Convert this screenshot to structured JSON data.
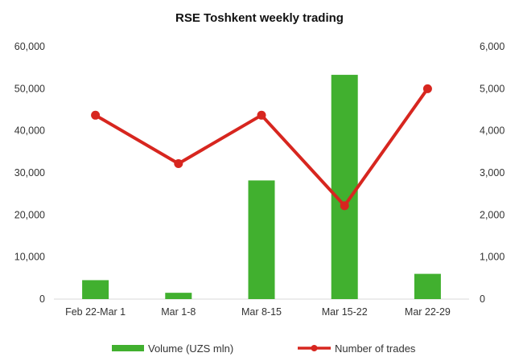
{
  "chart_data": {
    "type": "bar",
    "title": "RSE Toshkent weekly trading",
    "categories": [
      "Feb 22-Mar 1",
      "Mar 1-8",
      "Mar 8-15",
      "Mar 15-22",
      "Mar 22-29"
    ],
    "series": [
      {
        "name": "Volume (UZS mln)",
        "type": "bar",
        "axis": "left",
        "color": "#41b02f",
        "values": [
          4500,
          1500,
          28200,
          53300,
          6000
        ]
      },
      {
        "name": "Number of trades",
        "type": "line",
        "axis": "right",
        "color": "#d7261f",
        "values": [
          4370,
          3220,
          4370,
          2220,
          5000
        ]
      }
    ],
    "y_left": {
      "range": [
        0,
        60000
      ],
      "ticks": [
        "0",
        "10,000",
        "20,000",
        "30,000",
        "40,000",
        "50,000",
        "60,000"
      ]
    },
    "y_right": {
      "range": [
        0,
        6000
      ],
      "ticks": [
        "0",
        "1,000",
        "2,000",
        "3,000",
        "4,000",
        "5,000",
        "6,000"
      ]
    },
    "grid": false,
    "legend_position": "bottom"
  }
}
